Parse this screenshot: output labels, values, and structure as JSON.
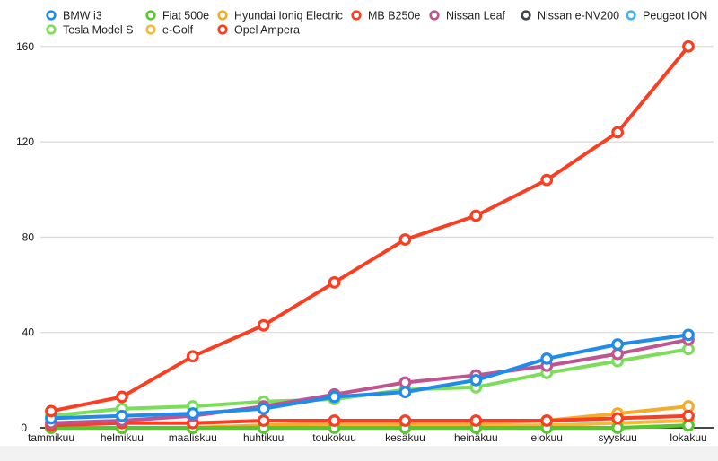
{
  "chart_data": {
    "type": "line",
    "title": "",
    "xlabel": "",
    "ylabel": "",
    "categories": [
      "tammikuu",
      "helmikuu",
      "maaliskuu",
      "huhtikuu",
      "toukokuu",
      "kesäkuu",
      "heinäkuu",
      "elokuu",
      "syyskuu",
      "lokakuu"
    ],
    "y_ticks": [
      0,
      40,
      80,
      120,
      160
    ],
    "ylim": [
      0,
      165
    ],
    "grid": true,
    "legend_position": "top",
    "marker_style": "ring",
    "series": [
      {
        "name": "Peugeot ION",
        "color": "#45B2F5",
        "values": [
          0,
          0,
          0,
          0,
          0,
          0,
          0,
          0,
          0,
          0
        ]
      },
      {
        "name": "Nissan e-NV200",
        "color": "#3E4347",
        "values": [
          0,
          0,
          0,
          0,
          0,
          0,
          0,
          0,
          0,
          0
        ]
      },
      {
        "name": "e-Golf",
        "color": "#F6B93F",
        "values": [
          0,
          0,
          0,
          1,
          1,
          1,
          1,
          1,
          2,
          3
        ]
      },
      {
        "name": "Hyundai Ioniq Electric",
        "color": "#F3AC2B",
        "values": [
          0,
          0,
          0,
          1,
          2,
          2,
          2,
          3,
          6,
          9
        ]
      },
      {
        "name": "Fiat 500e",
        "color": "#56C72F",
        "values": [
          0,
          0,
          0,
          0,
          0,
          0,
          0,
          0,
          0,
          1
        ]
      },
      {
        "name": "MB B250e",
        "color": "#F93E22",
        "values": [
          1,
          2,
          2,
          3,
          3,
          3,
          3,
          3,
          4,
          5
        ]
      },
      {
        "name": "Tesla Model S",
        "color": "#7CDD5A",
        "values": [
          5,
          8,
          9,
          11,
          12,
          16,
          17,
          23,
          28,
          33
        ]
      },
      {
        "name": "Nissan Leaf",
        "color": "#C05490",
        "values": [
          2,
          3,
          5,
          9,
          14,
          19,
          22,
          26,
          31,
          37
        ]
      },
      {
        "name": "BMW i3",
        "color": "#1F8CEB",
        "values": [
          4,
          5,
          6,
          8,
          13,
          15,
          20,
          29,
          35,
          39
        ]
      },
      {
        "name": "Opel Ampera",
        "color": "#F93E22",
        "values": [
          7,
          13,
          30,
          43,
          61,
          79,
          89,
          104,
          124,
          160
        ]
      }
    ]
  },
  "axis": {
    "y_tick_labels": [
      "0",
      "40",
      "80",
      "120",
      "160"
    ]
  },
  "colors": {
    "gridline": "#d9d9d9",
    "axis_line": "#0a0a0a",
    "tick_text": "#1a1a1a",
    "legend_text": "#222222"
  }
}
